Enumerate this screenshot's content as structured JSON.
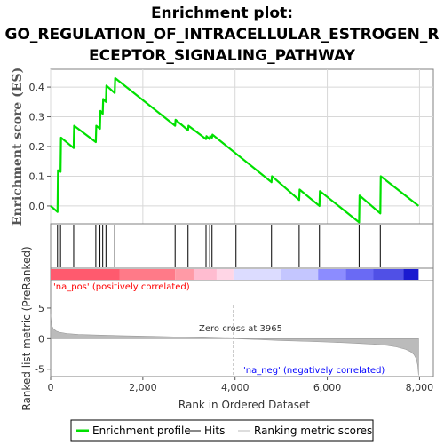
{
  "title_lines": [
    "Enrichment plot:",
    "GO_REGULATION_OF_INTRACELLULAR_ESTROGEN_R",
    "ECEPTOR_SIGNALING_PATHWAY"
  ],
  "colors": {
    "es_line": "#00e000",
    "hits": "#000000",
    "metric_fill": "#bbbbbb",
    "pos_label": "#ff0000",
    "neg_label": "#0000ff",
    "zero_line": "#aaaaaa",
    "panel_border": "#808080"
  },
  "legend": {
    "items": [
      "Enrichment profile",
      "Hits",
      "Ranking metric scores"
    ]
  },
  "annotations": {
    "pos_label": "'na_pos' (positively correlated)",
    "neg_label": "'na_neg' (negatively correlated)",
    "zero_cross": "Zero cross at 3965"
  },
  "chart_data": {
    "type": "line",
    "xlabel": "Rank in Ordered Dataset",
    "xlim": [
      0,
      8300
    ],
    "x_ticks": [
      0,
      2000,
      4000,
      6000,
      8000
    ],
    "x_tick_labels": [
      "0",
      "2,000",
      "4,000",
      "6,000",
      "8,000"
    ],
    "enrichment": {
      "ylabel": "Enrichment score (ES)",
      "ylim": [
        -0.06,
        0.46
      ],
      "y_ticks": [
        0.0,
        0.1,
        0.2,
        0.3,
        0.4
      ],
      "y_tick_labels": [
        "0.0",
        "0.1",
        "0.2",
        "0.3",
        "0.4"
      ],
      "grid": true,
      "series": [
        {
          "x": [
            0,
            150,
            160,
            215,
            225,
            500,
            510,
            980,
            990,
            1070,
            1080,
            1130,
            1140,
            1200,
            1210,
            1390,
            1400,
            2700,
            2710,
            2980,
            2990,
            3370,
            3380,
            3450,
            3460,
            3500,
            3510,
            4790,
            4800,
            5390,
            5400,
            5830,
            5840,
            6690,
            6700,
            7150,
            7160,
            7980
          ],
          "y": [
            0.0,
            -0.02,
            0.12,
            0.115,
            0.23,
            0.195,
            0.27,
            0.215,
            0.27,
            0.26,
            0.32,
            0.31,
            0.36,
            0.35,
            0.405,
            0.38,
            0.43,
            0.27,
            0.29,
            0.255,
            0.27,
            0.225,
            0.235,
            0.225,
            0.235,
            0.23,
            0.24,
            0.08,
            0.1,
            0.02,
            0.055,
            0.0,
            0.05,
            -0.055,
            0.035,
            -0.025,
            0.1,
            0.0
          ]
        }
      ]
    },
    "hits": [
      150,
      215,
      500,
      980,
      1070,
      1130,
      1200,
      1390,
      2700,
      2980,
      3370,
      3450,
      3500,
      4020,
      4790,
      5390,
      5830,
      6690,
      7150
    ],
    "color_bar": {
      "segments": [
        {
          "x0": 0,
          "x1": 1500,
          "color": "#ff5a6e"
        },
        {
          "x0": 1500,
          "x1": 2700,
          "color": "#ff7a88"
        },
        {
          "x0": 2700,
          "x1": 3100,
          "color": "#ff9aa6"
        },
        {
          "x0": 3100,
          "x1": 3600,
          "color": "#ffbcd0"
        },
        {
          "x0": 3600,
          "x1": 3965,
          "color": "#ffd6e6"
        },
        {
          "x0": 3965,
          "x1": 5000,
          "color": "#dcdcff"
        },
        {
          "x0": 5000,
          "x1": 5800,
          "color": "#c4c6ff"
        },
        {
          "x0": 5800,
          "x1": 6400,
          "color": "#8c8cff"
        },
        {
          "x0": 6400,
          "x1": 7000,
          "color": "#6a6af4"
        },
        {
          "x0": 7000,
          "x1": 7650,
          "color": "#5050e6"
        },
        {
          "x0": 7650,
          "x1": 7980,
          "color": "#1a1ad0"
        }
      ]
    },
    "ranked_metric": {
      "ylabel": "Ranked list metric (PreRanked)",
      "ylim": [
        -6.2,
        9.5
      ],
      "y_ticks": [
        -5,
        0,
        5
      ],
      "y_tick_labels": [
        "-5",
        "0",
        "5"
      ],
      "zero_cross": 3965,
      "x": [
        0,
        20,
        60,
        120,
        200,
        350,
        600,
        1000,
        1500,
        2000,
        2500,
        3000,
        3500,
        3965,
        4500,
        5000,
        5500,
        6000,
        6500,
        7000,
        7300,
        7500,
        7700,
        7800,
        7880,
        7930,
        7960,
        7980
      ],
      "y": [
        4.0,
        2.2,
        1.6,
        1.25,
        1.05,
        0.85,
        0.7,
        0.6,
        0.5,
        0.42,
        0.33,
        0.22,
        0.1,
        0.0,
        -0.15,
        -0.3,
        -0.42,
        -0.55,
        -0.7,
        -0.9,
        -1.1,
        -1.35,
        -1.75,
        -2.1,
        -2.6,
        -3.3,
        -4.3,
        -6.0
      ]
    }
  }
}
